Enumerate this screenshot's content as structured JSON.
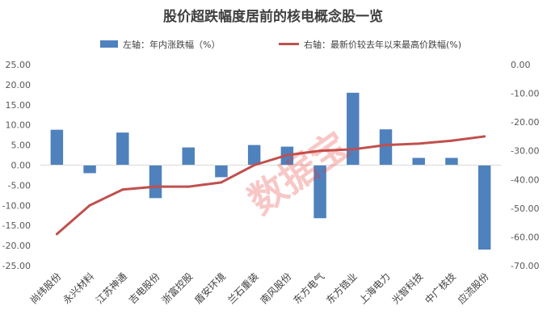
{
  "chart_data": {
    "type": "bar",
    "title": "股价超跌幅度居前的核电概念股一览",
    "categories": [
      "尚纬股份",
      "永兴材料",
      "江苏神通",
      "吉电股份",
      "浙富控股",
      "盾安环境",
      "兰石重装",
      "南风股份",
      "东方电气",
      "东方锆业",
      "上海电力",
      "光智科技",
      "中广核技",
      "应流股份"
    ],
    "series": [
      {
        "name": "左轴：年内涨跌幅（%）",
        "type": "bar",
        "axis": "left",
        "color": "#4f81bd",
        "values": [
          8.8,
          -2.0,
          8.1,
          -8.2,
          4.4,
          -3.0,
          5.0,
          4.6,
          -13.2,
          18.0,
          8.9,
          1.8,
          1.8,
          -21.0
        ]
      },
      {
        "name": "右轴：最新价较去年以来最高价跌幅(%)",
        "type": "line",
        "axis": "right",
        "color": "#c0504d",
        "values": [
          -59.0,
          -49.0,
          -43.5,
          -42.5,
          -42.5,
          -41.0,
          -35.0,
          -31.5,
          -30.0,
          -29.5,
          -28.0,
          -27.5,
          -26.5,
          -25.0
        ]
      }
    ],
    "y_left": {
      "min": -25,
      "max": 25,
      "step": 5,
      "tick_labels": [
        "25.00",
        "20.00",
        "15.00",
        "10.00",
        "5.00",
        "0.00",
        "-5.00",
        "-10.00",
        "-15.00",
        "-20.00",
        "-25.00"
      ]
    },
    "y_right": {
      "min": -70,
      "max": 0,
      "step": 10,
      "tick_labels": [
        "0.00",
        "-10.00",
        "-20.00",
        "-30.00",
        "-40.00",
        "-50.00",
        "-60.00",
        "-70.00"
      ]
    },
    "grid": false,
    "legend_position": "top",
    "watermark": "数据宝"
  }
}
